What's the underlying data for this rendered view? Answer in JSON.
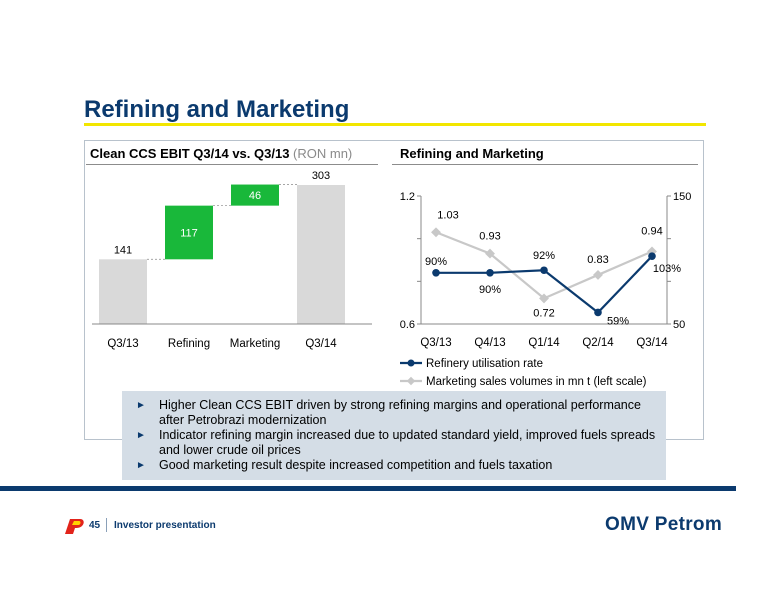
{
  "page": {
    "title": "Refining and Marketing",
    "colors": {
      "navy": "#0b3a6e",
      "yellow_rule": "#f2e600",
      "green": "#19b83a",
      "gray_bar": "#d9d9d9",
      "box_bg": "#d4dde6",
      "line_gray": "#c8c8c8"
    }
  },
  "left_panel": {
    "title": "Clean CCS EBIT Q3/14 vs. Q3/13",
    "unit": "(RON mn)"
  },
  "right_panel": {
    "title": "Refining and Marketing"
  },
  "bullets": [
    "Higher Clean CCS EBIT driven by strong refining margins and operational performance after Petrobrazi modernization",
    "Indicator refining margin increased due to updated standard yield, improved fuels spreads and lower crude oil prices",
    "Good marketing result despite increased competition and fuels taxation"
  ],
  "footer": {
    "page_number": "45",
    "label": "Investor presentation",
    "brand": "OMV Petrom",
    "logo_icon": "petrom-logo-icon"
  },
  "chart_data": [
    {
      "type": "bar",
      "subtype": "waterfall",
      "title": "Clean CCS EBIT Q3/14 vs. Q3/13",
      "unit": "(RON mn)",
      "categories": [
        "Q3/13",
        "Refining",
        "Marketing",
        "Q3/14"
      ],
      "values": [
        141,
        117,
        46,
        303
      ],
      "kinds": [
        "total",
        "delta",
        "delta",
        "total"
      ],
      "value_labels": [
        "141",
        "117",
        "46",
        "303"
      ],
      "colors": {
        "total": "#d9d9d9",
        "delta": "#19b83a"
      }
    },
    {
      "type": "line",
      "title": "Refining and Marketing",
      "categories": [
        "Q3/13",
        "Q4/13",
        "Q1/14",
        "Q2/14",
        "Q3/14"
      ],
      "series": [
        {
          "name": "Refinery utilisation rate",
          "axis": "right",
          "values": [
            90,
            90,
            92,
            59,
            103
          ],
          "labels": [
            "90%",
            "90%",
            "92%",
            "59%",
            "103%"
          ],
          "color": "#0b3a6e"
        },
        {
          "name": "Marketing sales volumes in mn t (left scale)",
          "axis": "left",
          "values": [
            1.03,
            0.93,
            0.72,
            0.83,
            0.94
          ],
          "labels": [
            "1.03",
            "0.93",
            "0.72",
            "0.83",
            "0.94"
          ],
          "color": "#c8c8c8"
        }
      ],
      "y_left": {
        "min": 0.6,
        "max": 1.2,
        "tick_labels": [
          "1.2",
          "0.6"
        ]
      },
      "y_right": {
        "min": 50,
        "max": 150,
        "tick_labels": [
          "150",
          "50"
        ]
      },
      "legend_position": "bottom",
      "grid": false
    }
  ]
}
